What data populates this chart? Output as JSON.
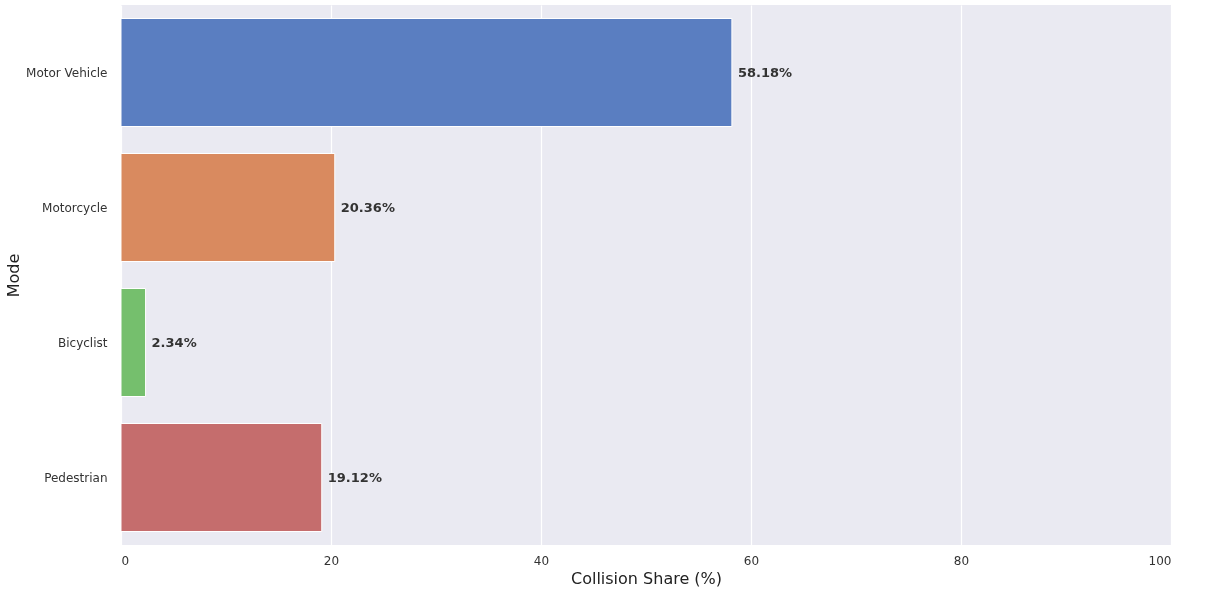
{
  "chart_data": {
    "type": "bar",
    "orientation": "horizontal",
    "xlabel": "Collision Share (%)",
    "ylabel": "Mode",
    "categories": [
      "Motor Vehicle",
      "Motorcycle",
      "Bicyclist",
      "Pedestrian"
    ],
    "values": [
      58.18,
      20.36,
      2.34,
      19.12
    ],
    "colors": [
      "#5a7ec1",
      "#d98a5f",
      "#75bf6d",
      "#c56d6d"
    ],
    "value_labels": [
      "58.18%",
      "20.36%",
      "2.34%",
      "19.12%"
    ],
    "xlim": [
      0,
      100
    ],
    "xticks": [
      0,
      20,
      40,
      60,
      80,
      100
    ],
    "grid": "x",
    "legend": false
  }
}
